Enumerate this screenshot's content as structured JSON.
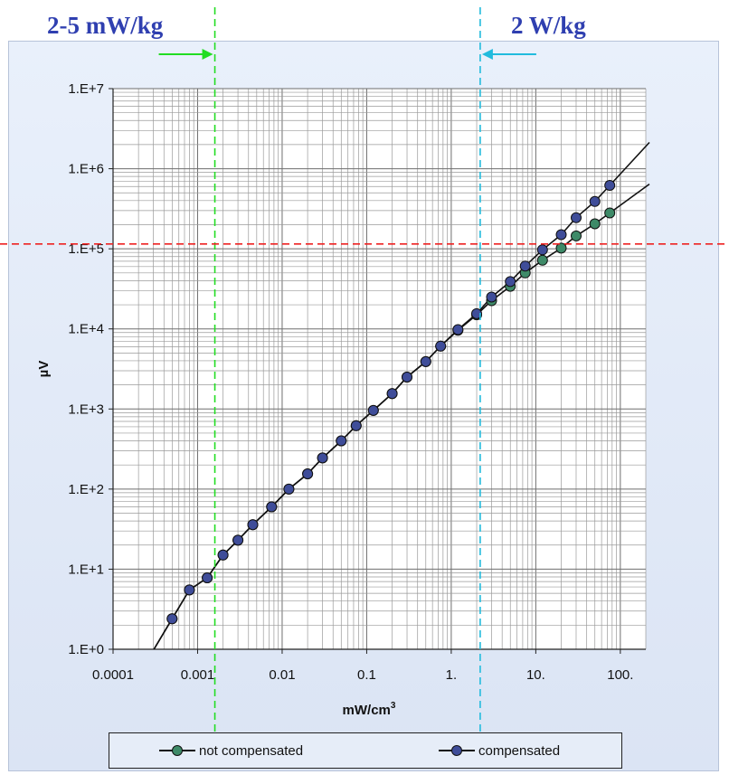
{
  "annotations": {
    "left_label": "2-5 mW/kg",
    "right_label": "2 W/kg"
  },
  "colors": {
    "green_dashed": "#22dd22",
    "cyan_dashed": "#22bbdd",
    "red_dashed": "#ee2222",
    "not_compensated_marker": "#3e8a68",
    "compensated_marker": "#3f4d99",
    "line": "#111111"
  },
  "chart_data": {
    "type": "scatter",
    "x_scale": "log",
    "y_scale": "log",
    "xlabel": "mW/cm",
    "xlabel_superscript": "3",
    "ylabel": "µV",
    "xlim": [
      0.0001,
      200
    ],
    "ylim": [
      1,
      10000000
    ],
    "x_ticks": [
      {
        "value": 0.0001,
        "label": "0.0001"
      },
      {
        "value": 0.001,
        "label": "0.001"
      },
      {
        "value": 0.01,
        "label": "0.01"
      },
      {
        "value": 0.1,
        "label": "0.1"
      },
      {
        "value": 1,
        "label": "1."
      },
      {
        "value": 10,
        "label": "10."
      },
      {
        "value": 100,
        "label": "100."
      }
    ],
    "y_ticks": [
      {
        "value": 1,
        "label": "1.E+0"
      },
      {
        "value": 10,
        "label": "1.E+1"
      },
      {
        "value": 100,
        "label": "1.E+2"
      },
      {
        "value": 1000,
        "label": "1.E+3"
      },
      {
        "value": 10000,
        "label": "1.E+4"
      },
      {
        "value": 100000,
        "label": "1.E+5"
      },
      {
        "value": 1000000,
        "label": "1.E+6"
      },
      {
        "value": 10000000,
        "label": "1.E+7"
      }
    ],
    "grid": true,
    "legend_position": "bottom",
    "reference_lines": [
      {
        "axis": "x",
        "value": 0.0016,
        "color": "#22dd22"
      },
      {
        "axis": "x",
        "value": 2.2,
        "color": "#22bbdd"
      },
      {
        "axis": "y",
        "value": 115000,
        "color": "#ee2222"
      }
    ],
    "series": [
      {
        "name": "not compensated",
        "color": "#3e8a68",
        "x": [
          0.0005,
          0.0008,
          0.0013,
          0.002,
          0.003,
          0.0045,
          0.0075,
          0.012,
          0.02,
          0.03,
          0.05,
          0.075,
          0.12,
          0.2,
          0.3,
          0.5,
          0.75,
          1.2,
          2,
          3,
          5,
          7.5,
          12,
          20,
          30,
          50,
          75
        ],
        "y": [
          2.4,
          5.5,
          7.8,
          15,
          23,
          36,
          60,
          100,
          155,
          245,
          400,
          620,
          960,
          1560,
          2500,
          3900,
          6100,
          9600,
          15000,
          22500,
          34000,
          50000,
          72000,
          102000,
          145000,
          205000,
          280000
        ]
      },
      {
        "name": "compensated",
        "color": "#3f4d99",
        "x": [
          0.0005,
          0.0008,
          0.0013,
          0.002,
          0.003,
          0.0045,
          0.0075,
          0.012,
          0.02,
          0.03,
          0.05,
          0.075,
          0.12,
          0.2,
          0.3,
          0.5,
          0.75,
          1.2,
          2,
          3,
          5,
          7.5,
          12,
          20,
          30,
          50,
          75
        ],
        "y": [
          2.4,
          5.5,
          7.8,
          15,
          23,
          36,
          60,
          100,
          155,
          245,
          400,
          620,
          960,
          1560,
          2500,
          3900,
          6100,
          9800,
          15500,
          25000,
          39000,
          61000,
          97000,
          150000,
          245000,
          390000,
          620000
        ]
      }
    ]
  }
}
